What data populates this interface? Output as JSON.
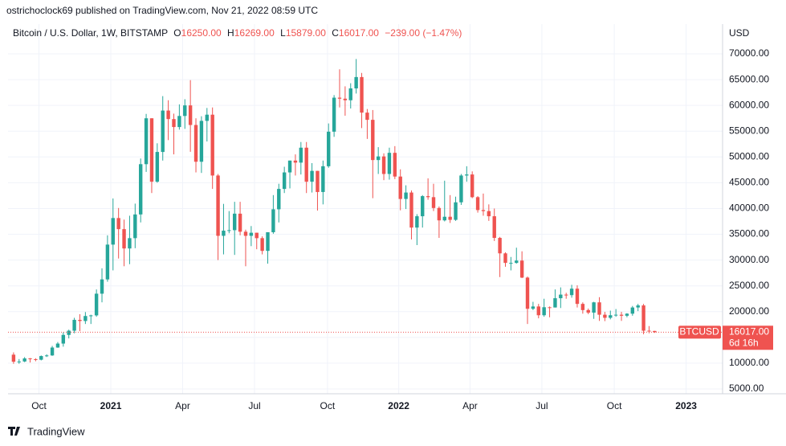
{
  "header": "ostrichoclock69 published on TradingView.com, Nov 21, 2022 08:59 UTC",
  "footer": "TradingView",
  "chart_data": {
    "type": "candlestick",
    "legend": {
      "symbol": "Bitcoin / U.S. Dollar, 1W, BITSTAMP",
      "open_label": "O",
      "open": "16250.00",
      "high_label": "H",
      "high": "16269.00",
      "low_label": "L",
      "low": "15879.00",
      "close_label": "C",
      "close": "16017.00",
      "change": "−239.00 (−1.47%)"
    },
    "currency": "USD",
    "up_color": "#26a69a",
    "down_color": "#ef5350",
    "series": [
      {
        "name": "BTCUSD",
        "open": [
          11650,
          10280,
          10330,
          10920,
          10770,
          10670,
          11380,
          11500,
          13030,
          13800,
          15480,
          16300,
          18400,
          18180,
          19150,
          19270,
          23480,
          26250,
          33000,
          38150,
          36000,
          32250,
          34250,
          38850,
          48600,
          57500,
          45200,
          50970,
          59000,
          57350,
          55800,
          57950,
          60000,
          56200,
          49070,
          57000,
          58200,
          46400,
          34700,
          35700,
          35800,
          39000,
          35500,
          34700,
          35300,
          34250,
          31780,
          35400,
          39850,
          43800,
          47000,
          49300,
          48900,
          51800,
          45200,
          47300,
          43200,
          48200,
          54900,
          61500,
          61300,
          61000,
          63300,
          65500,
          58600,
          57200,
          49400,
          50100,
          46700,
          50800,
          46200,
          41850,
          43100,
          36300,
          38500,
          42400,
          42200,
          40100,
          37700,
          38400,
          37800,
          41200,
          46400,
          46600,
          42200,
          39700,
          39500,
          38500,
          34300,
          31300,
          29450,
          29450,
          29900,
          26600,
          20550,
          21000,
          19300,
          20850,
          20800,
          22600,
          23300,
          23200,
          24450,
          21500,
          20300,
          19800,
          21800,
          19400,
          18800,
          19300,
          19400,
          19200,
          19600,
          20800,
          21200,
          16300,
          16250
        ],
        "high": [
          12090,
          10800,
          11180,
          10990,
          10960,
          11490,
          11720,
          13350,
          14100,
          15970,
          16500,
          18800,
          19500,
          19920,
          19400,
          24300,
          28400,
          34800,
          41950,
          40100,
          37850,
          38600,
          40950,
          49700,
          58350,
          57500,
          52650,
          61800,
          61000,
          58400,
          60200,
          61200,
          64900,
          57500,
          57900,
          59500,
          59600,
          46700,
          40900,
          39500,
          41300,
          41300,
          35900,
          36600,
          35300,
          34600,
          35400,
          42600,
          44800,
          48100,
          49300,
          50500,
          52900,
          52900,
          48800,
          47300,
          49300,
          56500,
          62000,
          67000,
          63700,
          64300,
          69000,
          66300,
          59300,
          59100,
          51900,
          50700,
          51800,
          52100,
          47600,
          44500,
          43500,
          38900,
          42600,
          45850,
          44800,
          40400,
          45400,
          42600,
          42300,
          46700,
          48200,
          47200,
          42400,
          42900,
          40800,
          40000,
          34500,
          31500,
          30600,
          32400,
          31700,
          26800,
          21900,
          21500,
          22500,
          21000,
          24300,
          24700,
          23650,
          25200,
          25100,
          21800,
          20600,
          21900,
          22800,
          19950,
          20200,
          20500,
          19950,
          19700,
          21100,
          21500,
          21500,
          17200,
          16269
        ],
        "low": [
          9880,
          9880,
          10200,
          10130,
          10370,
          10540,
          11200,
          11420,
          12980,
          13200,
          14800,
          15800,
          16200,
          17600,
          17600,
          19000,
          21800,
          25800,
          28000,
          30300,
          28800,
          29200,
          32300,
          37300,
          47100,
          43000,
          45000,
          49300,
          53270,
          50500,
          55300,
          55450,
          51000,
          47000,
          46900,
          53000,
          43800,
          30000,
          31100,
          35200,
          31000,
          34800,
          28800,
          32700,
          32100,
          31100,
          29300,
          35100,
          37300,
          43000,
          43900,
          46400,
          46600,
          43000,
          43100,
          39600,
          40800,
          47900,
          53900,
          59600,
          58000,
          59400,
          62300,
          55600,
          53500,
          42000,
          46700,
          45500,
          45600,
          45700,
          39650,
          39900,
          34000,
          32900,
          36300,
          41700,
          39500,
          34300,
          37500,
          37200,
          37600,
          40700,
          45200,
          42000,
          39200,
          38600,
          37600,
          33700,
          26700,
          28700,
          28000,
          29300,
          26500,
          17600,
          20300,
          18700,
          19000,
          18900,
          20800,
          20700,
          22500,
          22700,
          20800,
          19600,
          19500,
          18600,
          18200,
          18150,
          18500,
          19000,
          18200,
          18900,
          19200,
          20100,
          15600,
          15800,
          15879
        ],
        "close": [
          10280,
          10330,
          10920,
          10770,
          10670,
          11380,
          11500,
          13030,
          13800,
          15480,
          16300,
          18400,
          18180,
          19150,
          19270,
          23480,
          26250,
          33000,
          38150,
          36000,
          32250,
          34250,
          38850,
          48600,
          57500,
          45200,
          50970,
          59000,
          57350,
          55800,
          57950,
          60000,
          56200,
          49070,
          57000,
          58200,
          46400,
          34700,
          35700,
          35800,
          39000,
          35500,
          34700,
          35300,
          34250,
          31780,
          35400,
          39850,
          43800,
          47000,
          49300,
          48900,
          51800,
          45200,
          47300,
          43200,
          48200,
          54900,
          61500,
          61300,
          61000,
          63300,
          65500,
          58600,
          57200,
          49400,
          50100,
          46700,
          50800,
          46200,
          41850,
          43100,
          36300,
          38500,
          42400,
          42200,
          40100,
          37700,
          38400,
          37800,
          41200,
          46400,
          46600,
          42200,
          39700,
          39500,
          38500,
          34300,
          31300,
          29450,
          29450,
          29900,
          26600,
          20550,
          21000,
          19300,
          20850,
          20800,
          22600,
          23300,
          23200,
          24450,
          21500,
          20300,
          19800,
          21800,
          19400,
          18800,
          19300,
          19400,
          19200,
          19600,
          20800,
          21200,
          16300,
          16250,
          16017
        ]
      }
    ],
    "last_price": {
      "value": 16017,
      "label": "16017.00"
    },
    "countdown": "6d 16h",
    "xlim": [
      -1,
      128.3
    ],
    "xticks": [
      {
        "value": 4.6,
        "label": "Oct"
      },
      {
        "value": 17.6,
        "label": "2021"
      },
      {
        "value": 30.6,
        "label": "Apr"
      },
      {
        "value": 43.6,
        "label": "Jul"
      },
      {
        "value": 56.8,
        "label": "Oct"
      },
      {
        "value": 69.7,
        "label": "2022"
      },
      {
        "value": 82.6,
        "label": "Apr"
      },
      {
        "value": 95.6,
        "label": "Jul"
      },
      {
        "value": 108.7,
        "label": "Oct"
      },
      {
        "value": 121.7,
        "label": "2023"
      }
    ],
    "ylim": [
      4065,
      75768
    ],
    "yticks": [
      {
        "value": 5000,
        "label": "5000.00"
      },
      {
        "value": 10000,
        "label": "10000.00"
      },
      {
        "value": 15000,
        "label": "15000.00"
      },
      {
        "value": 20000,
        "label": "20000.00"
      },
      {
        "value": 25000,
        "label": "25000.00"
      },
      {
        "value": 30000,
        "label": "30000.00"
      },
      {
        "value": 35000,
        "label": "35000.00"
      },
      {
        "value": 40000,
        "label": "40000.00"
      },
      {
        "value": 45000,
        "label": "45000.00"
      },
      {
        "value": 50000,
        "label": "50000.00"
      },
      {
        "value": 55000,
        "label": "55000.00"
      },
      {
        "value": 60000,
        "label": "60000.00"
      },
      {
        "value": 65000,
        "label": "65000.00"
      },
      {
        "value": 70000,
        "label": "70000.00"
      }
    ],
    "grid": true
  }
}
